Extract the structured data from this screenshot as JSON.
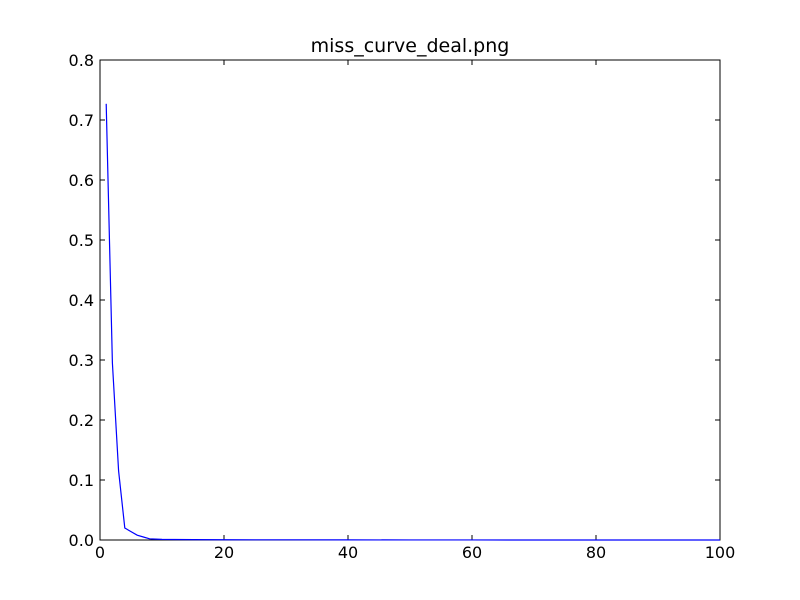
{
  "chart_data": {
    "type": "line",
    "title": "miss_curve_deal.png",
    "xlabel": "",
    "ylabel": "",
    "xlim": [
      0,
      100
    ],
    "ylim": [
      0.0,
      0.8
    ],
    "x_ticks": [
      0,
      20,
      40,
      60,
      80,
      100
    ],
    "x_tick_labels": [
      "0",
      "20",
      "40",
      "60",
      "80",
      "100"
    ],
    "y_ticks": [
      0.0,
      0.1,
      0.2,
      0.3,
      0.4,
      0.5,
      0.6,
      0.7,
      0.8
    ],
    "y_tick_labels": [
      "0.0",
      "0.1",
      "0.2",
      "0.3",
      "0.4",
      "0.5",
      "0.6",
      "0.7",
      "0.8"
    ],
    "grid": false,
    "legend": "none",
    "series": [
      {
        "color": "#0000ff",
        "x": [
          1,
          2,
          3,
          4,
          5,
          6,
          7,
          8,
          9,
          10,
          12,
          15,
          20,
          30,
          40,
          50,
          60,
          70,
          80,
          90,
          100
        ],
        "y": [
          0.727,
          0.295,
          0.115,
          0.02,
          0.014,
          0.008,
          0.005,
          0.002,
          0.0015,
          0.001,
          0.0008,
          0.0006,
          0.0004,
          0.0003,
          0.0002,
          0.0001,
          0.0001,
          0.0,
          0.0,
          0.0,
          0.0
        ]
      }
    ]
  }
}
